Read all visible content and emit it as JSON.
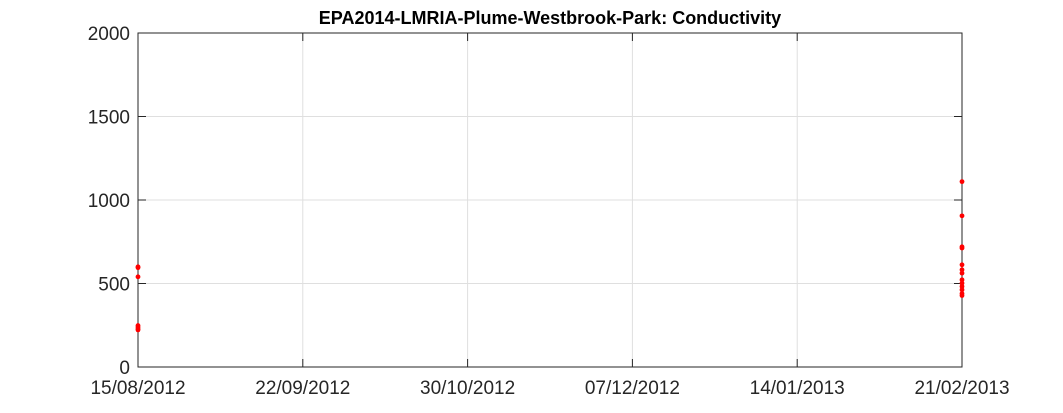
{
  "chart_data": {
    "type": "scatter",
    "title": "EPA2014-LMRIA-Plume-Westbrook-Park: Conductivity",
    "xlabel": "",
    "ylabel": "",
    "x_axis_type": "date",
    "xlim": [
      "15/08/2012",
      "21/02/2013"
    ],
    "ylim": [
      0,
      2000
    ],
    "x_ticks": [
      "15/08/2012",
      "22/09/2012",
      "30/10/2012",
      "07/12/2012",
      "14/01/2013",
      "21/02/2013"
    ],
    "y_ticks": [
      0,
      500,
      1000,
      1500,
      2000
    ],
    "y_tick_labels": [
      "0",
      "500",
      "1000",
      "1500",
      "2000"
    ],
    "grid": true,
    "marker_color": "#ff0000",
    "series": [
      {
        "x": [
          "15/08/2012",
          "15/08/2012",
          "15/08/2012",
          "15/08/2012",
          "15/08/2012",
          "15/08/2012",
          "15/08/2012",
          "21/02/2013",
          "21/02/2013",
          "21/02/2013",
          "21/02/2013",
          "21/02/2013",
          "21/02/2013",
          "21/02/2013",
          "21/02/2013",
          "21/02/2013",
          "21/02/2013",
          "21/02/2013",
          "21/02/2013",
          "21/02/2013"
        ],
        "y": [
          600,
          595,
          540,
          248,
          238,
          228,
          222,
          1110,
          905,
          720,
          712,
          612,
          582,
          562,
          522,
          502,
          482,
          462,
          440,
          428
        ]
      }
    ]
  }
}
